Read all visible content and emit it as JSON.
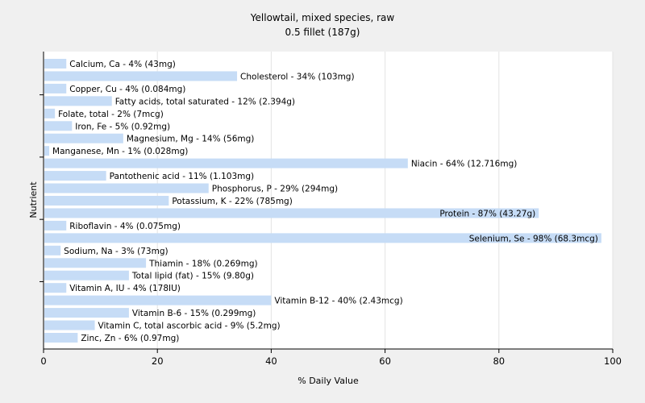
{
  "chart_data": {
    "type": "bar",
    "orientation": "horizontal",
    "title": "Yellowtail, mixed species, raw",
    "subtitle": "0.5 fillet (187g)",
    "xlabel": "% Daily Value",
    "ylabel": "Nutrient",
    "xlim": [
      0,
      100
    ],
    "xticks": [
      "0",
      "20",
      "40",
      "60",
      "80",
      "100"
    ],
    "grid": "vertical",
    "bar_color": "#c6dcf6",
    "bars": [
      {
        "name": "Calcium, Ca",
        "value": 4,
        "label": "Calcium, Ca - 4% (43mg)"
      },
      {
        "name": "Cholesterol",
        "value": 34,
        "label": "Cholesterol - 34% (103mg)"
      },
      {
        "name": "Copper, Cu",
        "value": 4,
        "label": "Copper, Cu - 4% (0.084mg)"
      },
      {
        "name": "Fatty acids, total saturated",
        "value": 12,
        "label": "Fatty acids, total saturated - 12% (2.394g)"
      },
      {
        "name": "Folate, total",
        "value": 2,
        "label": "Folate, total - 2% (7mcg)"
      },
      {
        "name": "Iron, Fe",
        "value": 5,
        "label": "Iron, Fe - 5% (0.92mg)"
      },
      {
        "name": "Magnesium, Mg",
        "value": 14,
        "label": "Magnesium, Mg - 14% (56mg)"
      },
      {
        "name": "Manganese, Mn",
        "value": 1,
        "label": "Manganese, Mn - 1% (0.028mg)"
      },
      {
        "name": "Niacin",
        "value": 64,
        "label": "Niacin - 64% (12.716mg)"
      },
      {
        "name": "Pantothenic acid",
        "value": 11,
        "label": "Pantothenic acid - 11% (1.103mg)"
      },
      {
        "name": "Phosphorus, P",
        "value": 29,
        "label": "Phosphorus, P - 29% (294mg)"
      },
      {
        "name": "Potassium, K",
        "value": 22,
        "label": "Potassium, K - 22% (785mg)"
      },
      {
        "name": "Protein",
        "value": 87,
        "label": "Protein - 87% (43.27g)"
      },
      {
        "name": "Riboflavin",
        "value": 4,
        "label": "Riboflavin - 4% (0.075mg)"
      },
      {
        "name": "Selenium, Se",
        "value": 98,
        "label": "Selenium, Se - 98% (68.3mcg)"
      },
      {
        "name": "Sodium, Na",
        "value": 3,
        "label": "Sodium, Na - 3% (73mg)"
      },
      {
        "name": "Thiamin",
        "value": 18,
        "label": "Thiamin - 18% (0.269mg)"
      },
      {
        "name": "Total lipid (fat)",
        "value": 15,
        "label": "Total lipid (fat) - 15% (9.80g)"
      },
      {
        "name": "Vitamin A, IU",
        "value": 4,
        "label": "Vitamin A, IU - 4% (178IU)"
      },
      {
        "name": "Vitamin B-12",
        "value": 40,
        "label": "Vitamin B-12 - 40% (2.43mcg)"
      },
      {
        "name": "Vitamin B-6",
        "value": 15,
        "label": "Vitamin B-6 - 15% (0.299mg)"
      },
      {
        "name": "Vitamin C, total ascorbic acid",
        "value": 9,
        "label": "Vitamin C, total ascorbic acid - 9% (5.2mg)"
      },
      {
        "name": "Zinc, Zn",
        "value": 6,
        "label": "Zinc, Zn - 6% (0.97mg)"
      }
    ]
  }
}
